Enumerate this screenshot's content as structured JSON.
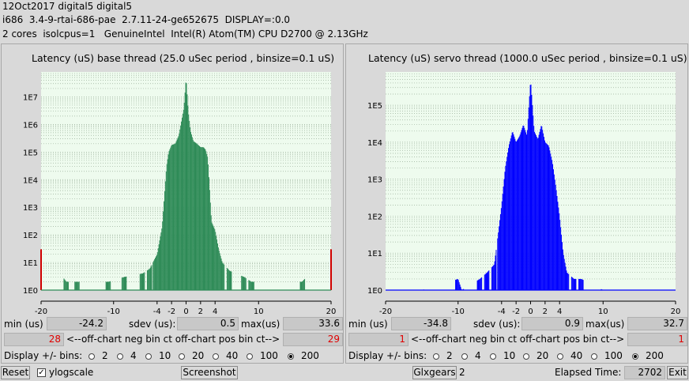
{
  "header": {
    "line1": "12Oct2017 digital5 digital5",
    "line2": "i686  3.4-9-rtai-686-pae  2.7.11-24-ge652675  DISPLAY=:0.0",
    "line3": "2 cores  isolcpus=1   GenuineIntel  Intel(R) Atom(TM) CPU D2700 @ 2.13GHz"
  },
  "base": {
    "title": "Latency (uS) base thread (25.0 uSec period , binsize=0.1 uS)",
    "min_label": "min (us)",
    "min_value": "-24.2",
    "sdev_label": "sdev (us):",
    "sdev_value": "0.5",
    "max_label": "max(us)",
    "max_value": "33.6",
    "neg_ct": "28",
    "pos_ct": "29",
    "offchart_label": "<--off-chart neg bin ct off-chart pos bin ct-->",
    "display_label": "Display +/- bins:"
  },
  "servo": {
    "title": "Latency (uS) servo thread (1000.0 uSec period , binsize=0.1 uS)",
    "min_label": "min (us)",
    "min_value": "-34.8",
    "sdev_label": "sdev (us):",
    "sdev_value": "0.9",
    "max_label": "max(us)",
    "max_value": "32.7",
    "neg_ct": "1",
    "pos_ct": "1",
    "offchart_label": "<--off-chart neg bin ct off-chart pos bin ct-->",
    "display_label": "Display +/- bins:"
  },
  "bins_options": [
    "2",
    "4",
    "10",
    "20",
    "40",
    "100",
    "200"
  ],
  "bins_selected": "200",
  "bottom": {
    "reset": "Reset",
    "ylogscale": "ylogscale",
    "ylogscale_checked": true,
    "screenshot": "Screenshot",
    "glxgears": "Glxgears",
    "glxgears_count": "2",
    "elapsed_label": "Elapsed Time:",
    "elapsed_value": "2702",
    "exit": "Exit"
  },
  "colors": {
    "base_bars": "#2e8b57",
    "servo_bars": "#0000ff",
    "outlier": "#d00000",
    "plot_bg": "#eefbee"
  },
  "chart_data": [
    {
      "type": "bar",
      "title": "Latency (uS) base thread (25.0 uSec period , binsize=0.1 uS)",
      "scale": "log",
      "x_ticks": [
        "-20",
        "-10",
        "-4",
        "-2",
        "0",
        "2",
        "4",
        "10",
        "20"
      ],
      "y_ticks": [
        "1E0",
        "1E1",
        "1E2",
        "1E3",
        "1E4",
        "1E5",
        "1E6",
        "1E7"
      ],
      "xlim": [
        -20,
        20
      ],
      "series": [
        {
          "x": [
            -20,
            -16.5,
            -15,
            -10.7,
            -8.5,
            -6,
            -5,
            -4,
            -3.3,
            -3,
            -2.7,
            -2.4,
            -2,
            -1.5,
            -1,
            -0.6,
            -0.3,
            0,
            0.3,
            0.6,
            1,
            1.5,
            2,
            2.4,
            2.7,
            3,
            3.5,
            4,
            4.5,
            5,
            6,
            8,
            9,
            16,
            20
          ],
          "y": [
            30,
            2,
            2,
            2,
            3,
            4,
            6,
            20,
            200,
            2500,
            30000,
            100000,
            180000,
            200000,
            400000,
            1500000,
            4000000,
            50000000,
            3000000,
            600000,
            250000,
            200000,
            150000,
            150000,
            120000,
            60000,
            300,
            150,
            30,
            10,
            5,
            3,
            2,
            2,
            30
          ]
        }
      ]
    },
    {
      "type": "bar",
      "title": "Latency (uS) servo thread (1000.0 uSec period , binsize=0.1 uS)",
      "scale": "log",
      "x_ticks": [
        "-20",
        "-10",
        "-4",
        "-2",
        "0",
        "2",
        "4",
        "10",
        "20"
      ],
      "y_ticks": [
        "1E0",
        "1E1",
        "1E2",
        "1E3",
        "1E4",
        "1E5"
      ],
      "xlim": [
        -20,
        20
      ],
      "series": [
        {
          "x": [
            -20,
            -18,
            -15,
            -10,
            -9.5,
            -7,
            -6,
            -5,
            -4.5,
            -4,
            -3.5,
            -3,
            -2.5,
            -2,
            -1.5,
            -1,
            -0.5,
            0,
            0.5,
            1,
            1.5,
            2,
            2.5,
            3,
            3.5,
            4,
            4.5,
            5,
            6,
            7,
            10,
            20
          ],
          "y": [
            1,
            1,
            1,
            2,
            1,
            2,
            3,
            5,
            30,
            200,
            2000,
            8000,
            20000,
            10000,
            15000,
            30000,
            15000,
            500000,
            20000,
            12000,
            30000,
            10000,
            8000,
            3000,
            600,
            100,
            10,
            3,
            2,
            2,
            1,
            1
          ]
        }
      ]
    }
  ]
}
